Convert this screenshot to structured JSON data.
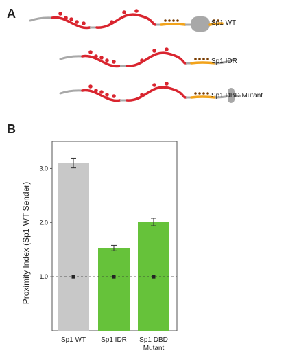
{
  "panel_a": {
    "label": "A",
    "constructs": [
      {
        "name": "Sp1 WT",
        "has_dbd": true,
        "dbd_variant": "wt"
      },
      {
        "name": "Sp1 IDR",
        "has_dbd": false,
        "dbd_variant": "none"
      },
      {
        "name": "Sp1 DBD Mutant",
        "has_dbd": true,
        "dbd_variant": "mutant"
      }
    ],
    "colors": {
      "linker": "#a8a8a8",
      "idr": "#d9252f",
      "charged": "#f2a31b",
      "dbd": "#a8a8a8",
      "dot_idr": "#d9252f",
      "dot_charged": "#7a3d00"
    }
  },
  "panel_b": {
    "label": "B",
    "ylabel": "Proximity Index (Sp1 WT Sender)"
  },
  "chart_data": {
    "type": "bar",
    "categories": [
      "Sp1 WT",
      "Sp1 IDR",
      "Sp1 DBD\nMutant"
    ],
    "values": [
      3.1,
      1.53,
      2.01
    ],
    "errors": [
      0.09,
      0.05,
      0.07
    ],
    "baseline_values": [
      1.0,
      1.0,
      1.0
    ],
    "baseline_errors": [
      0.02,
      0.02,
      0.02
    ],
    "bar_colors": [
      "#c8c8c8",
      "#66c23a",
      "#66c23a"
    ],
    "reference_line": 1.0,
    "yticks": [
      1.0,
      2.0,
      3.0
    ],
    "ytick_labels": [
      "1.0",
      "2.0",
      "3.0"
    ],
    "ylim": [
      0,
      3.5
    ],
    "ylabel": "Proximity Index (Sp1 WT Sender)",
    "xlabel": "",
    "title": "",
    "grid": false
  }
}
